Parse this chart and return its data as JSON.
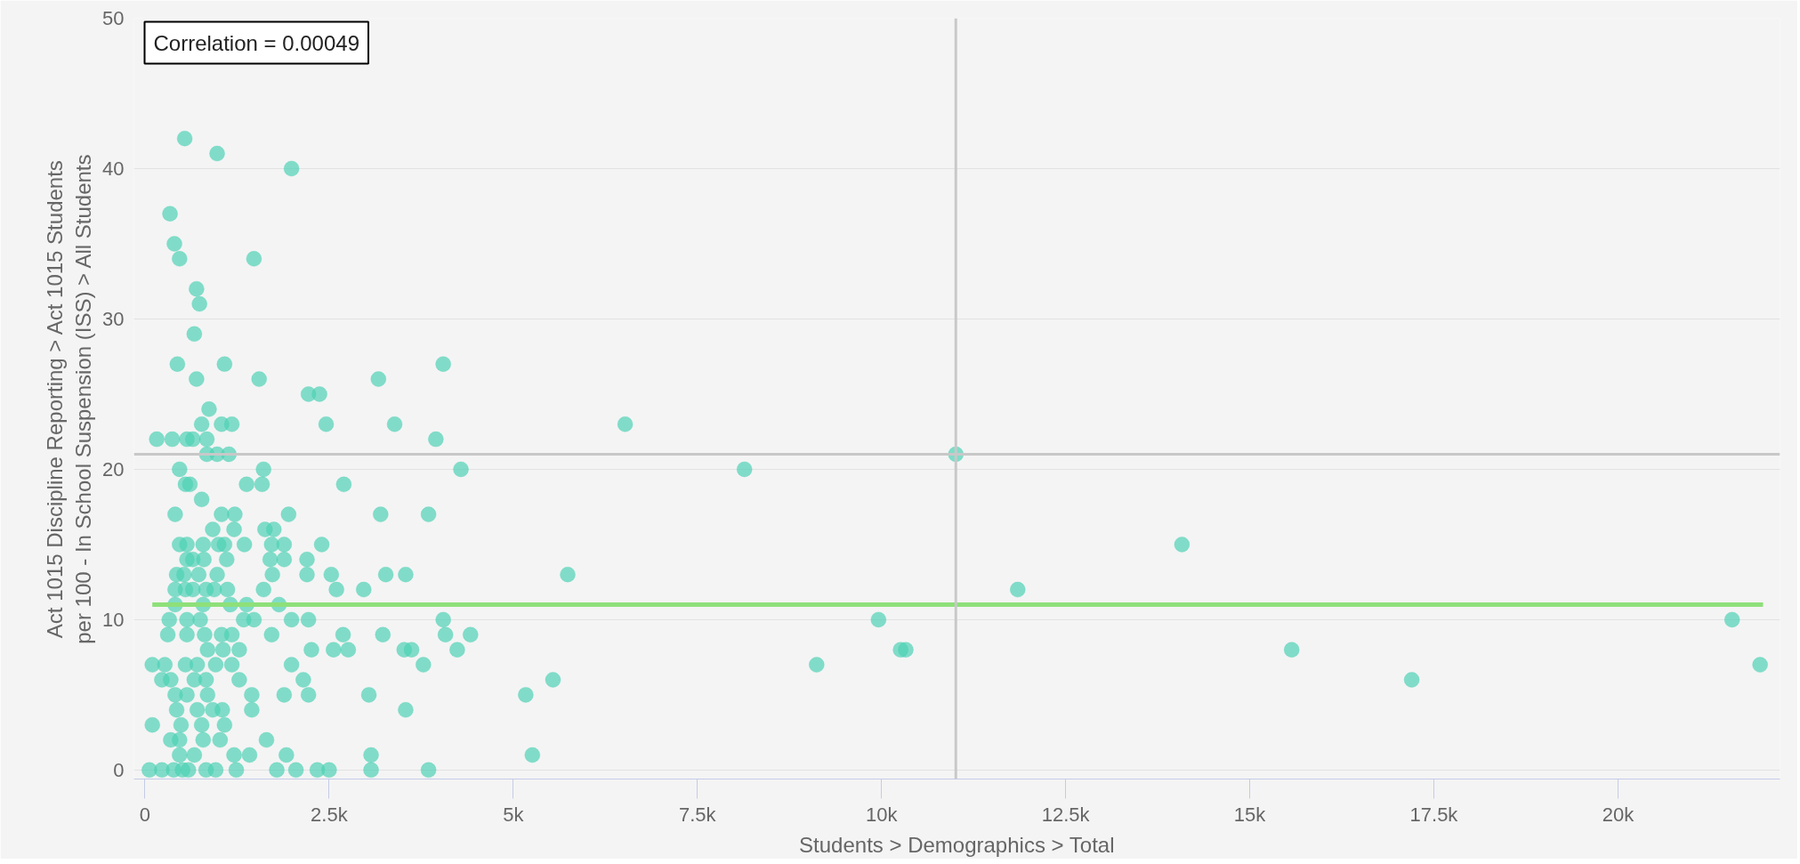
{
  "chart_data": {
    "type": "scatter",
    "xlabel": "Students > Demographics > Total",
    "ylabel": "Act 1015 Discipline Reporting > Act 1015 Students\nper 100 - In School Suspension (ISS) > All Students",
    "annotations": [
      "Correlation = 0.00049"
    ],
    "xlim": [
      -150,
      22200
    ],
    "ylim": [
      -0.6,
      50
    ],
    "xticks": [
      0,
      {
        "value": 2500,
        "label": "2.5k"
      },
      {
        "value": 5000,
        "label": "5k"
      },
      {
        "value": 7500,
        "label": "7.5k"
      },
      {
        "value": 10000,
        "label": "10k"
      },
      {
        "value": 12500,
        "label": "12.5k"
      },
      {
        "value": 15000,
        "label": "15k"
      },
      {
        "value": 17500,
        "label": "17.5k"
      },
      {
        "value": 20000,
        "label": "20k"
      }
    ],
    "yticks": [
      0,
      10,
      20,
      30,
      40,
      50
    ],
    "grid": "y",
    "ref_lines": [
      {
        "axis": "x",
        "value": 11010,
        "color": "#c8c8c8"
      },
      {
        "axis": "y",
        "value": 21,
        "color": "#c8c8c8"
      }
    ],
    "series": [
      {
        "color": "#4fd1b5",
        "marker": "circle",
        "x": [
          540,
          980,
          1990,
          340,
          400,
          470,
          1480,
          700,
          740,
          670,
          440,
          1080,
          4050,
          700,
          1550,
          3170,
          2220,
          2370,
          870,
          770,
          1040,
          1180,
          2460,
          3390,
          6520,
          160,
          370,
          570,
          650,
          840,
          3950,
          840,
          980,
          1140,
          11010,
          470,
          1610,
          4290,
          8140,
          550,
          610,
          1380,
          1590,
          2700,
          770,
          410,
          1040,
          1220,
          1950,
          3200,
          3850,
          920,
          1210,
          1630,
          1750,
          470,
          570,
          790,
          1000,
          1080,
          1350,
          1720,
          1890,
          2400,
          14080,
          570,
          650,
          800,
          1110,
          1700,
          1890,
          2200,
          430,
          530,
          730,
          980,
          1730,
          2200,
          2530,
          3270,
          3540,
          5740,
          410,
          550,
          650,
          830,
          940,
          1120,
          1610,
          2600,
          2970,
          11850,
          410,
          790,
          1160,
          1380,
          1820,
          330,
          570,
          750,
          1340,
          1480,
          1990,
          2220,
          4050,
          9960,
          21550,
          310,
          570,
          810,
          1040,
          1180,
          1720,
          2690,
          3230,
          4080,
          4420,
          850,
          1060,
          1280,
          2260,
          2560,
          2760,
          3520,
          3620,
          4240,
          10260,
          10330,
          15570,
          100,
          270,
          550,
          710,
          960,
          1180,
          1990,
          3780,
          9120,
          21930,
          230,
          350,
          670,
          830,
          1280,
          2150,
          5540,
          17200,
          410,
          570,
          850,
          1450,
          1890,
          2220,
          3040,
          5170,
          430,
          710,
          920,
          1050,
          1450,
          3540,
          100,
          490,
          770,
          1080,
          350,
          470,
          790,
          1020,
          1650,
          470,
          670,
          1210,
          1420,
          1920,
          3070,
          5260,
          60,
          230,
          390,
          510,
          590,
          830,
          960,
          1240,
          1790,
          2050,
          2340,
          2500,
          3070,
          3850
        ],
        "values": [
          42,
          41,
          40,
          37,
          35,
          34,
          34,
          32,
          31,
          29,
          27,
          27,
          27,
          26,
          26,
          26,
          25,
          25,
          24,
          23,
          23,
          23,
          23,
          23,
          23,
          22,
          22,
          22,
          22,
          22,
          22,
          21,
          21,
          21,
          21,
          20,
          20,
          20,
          20,
          19,
          19,
          19,
          19,
          19,
          18,
          17,
          17,
          17,
          17,
          17,
          17,
          16,
          16,
          16,
          16,
          15,
          15,
          15,
          15,
          15,
          15,
          15,
          15,
          15,
          15,
          14,
          14,
          14,
          14,
          14,
          14,
          14,
          13,
          13,
          13,
          13,
          13,
          13,
          13,
          13,
          13,
          13,
          12,
          12,
          12,
          12,
          12,
          12,
          12,
          12,
          12,
          12,
          11,
          11,
          11,
          11,
          11,
          10,
          10,
          10,
          10,
          10,
          10,
          10,
          10,
          10,
          10,
          9,
          9,
          9,
          9,
          9,
          9,
          9,
          9,
          9,
          9,
          8,
          8,
          8,
          8,
          8,
          8,
          8,
          8,
          8,
          8,
          8,
          8,
          7,
          7,
          7,
          7,
          7,
          7,
          7,
          7,
          7,
          7,
          6,
          6,
          6,
          6,
          6,
          6,
          6,
          6,
          5,
          5,
          5,
          5,
          5,
          5,
          5,
          5,
          4,
          4,
          4,
          4,
          4,
          4,
          3,
          3,
          3,
          3,
          2,
          2,
          2,
          2,
          2,
          1,
          1,
          1,
          1,
          1,
          1,
          1,
          0,
          0,
          0,
          0,
          0,
          0,
          0,
          0,
          0,
          0,
          0,
          0,
          0,
          0
        ]
      },
      {
        "type": "line",
        "color": "#8ee07a",
        "x": [
          100,
          21970
        ],
        "values": [
          11,
          11
        ]
      }
    ]
  }
}
